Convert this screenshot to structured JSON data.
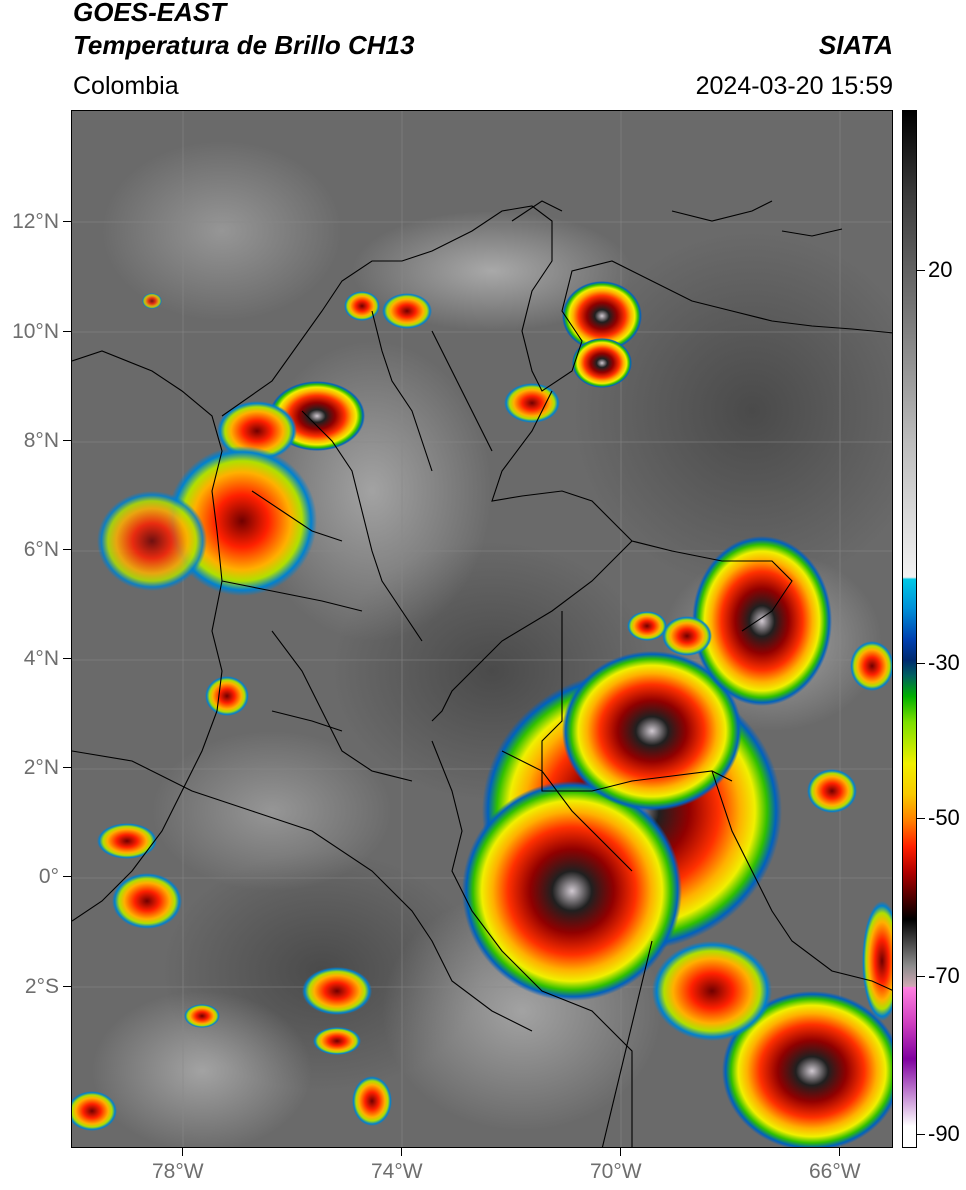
{
  "header": {
    "satellite": "GOES-EAST",
    "product": "Temperatura de Brillo CH13",
    "region": "Colombia",
    "agency": "SIATA",
    "timestamp": "2024-03-20 15:59"
  },
  "map": {
    "lat_ticks": [
      "12°N",
      "10°N",
      "8°N",
      "6°N",
      "4°N",
      "2°N",
      "0°",
      "2°S"
    ],
    "lon_ticks": [
      "78°W",
      "74°W",
      "70°W",
      "66°W"
    ]
  },
  "colorbar": {
    "ticks": [
      "20",
      "-30",
      "-50",
      "-70",
      "-90"
    ],
    "colors": {
      "warm": "#000000",
      "clear": "#ffffff",
      "cold_start": "#00c8e6",
      "mid_cold": "#f0f000",
      "very_cold": "#b00000",
      "extreme": "#8000a0"
    }
  }
}
